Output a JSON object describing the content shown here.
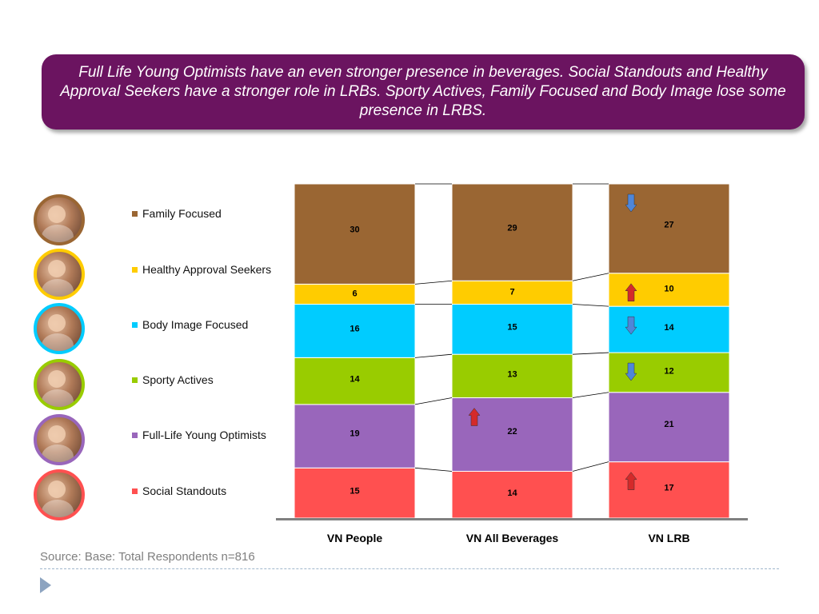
{
  "headline": "Full Life Young Optimists have an even stronger presence in beverages. Social Standouts and Healthy Approval Seekers have a stronger role in LRBs. Sporty Actives, Family Focused and Body Image lose some presence in LRBS.",
  "source": "Source: Base: Total Respondents n=816",
  "segments": [
    {
      "label": "Family Focused",
      "color": "#9a6633",
      "avatar_icon": "family-photo-icon"
    },
    {
      "label": "Healthy Approval Seekers",
      "color": "#ffcc00",
      "avatar_icon": "girl-eating-apple-photo-icon"
    },
    {
      "label": "Body Image Focused",
      "color": "#00ccff",
      "avatar_icon": "woman-exercising-photo-icon"
    },
    {
      "label": "Sporty Actives",
      "color": "#99cc00",
      "avatar_icon": "sports-group-photo-icon"
    },
    {
      "label": "Full-Life Young Optimists",
      "color": "#9966bb",
      "avatar_icon": "smiling-boy-photo-icon"
    },
    {
      "label": "Social Standouts",
      "color": "#ff5050",
      "avatar_icon": "friends-group-photo-icon"
    }
  ],
  "colors": {
    "banner": "#6b1460",
    "arrow_up": "#d42a2a",
    "arrow_down": "#4f86d9",
    "axis": "#808080"
  },
  "chart_data": {
    "type": "bar",
    "stacked": true,
    "percent_stacked": true,
    "categories": [
      "VN People",
      "VN All Beverages",
      "VN LRB"
    ],
    "series": [
      {
        "name": "Social Standouts",
        "values": [
          15,
          14,
          17
        ]
      },
      {
        "name": "Full-Life Young Optimists",
        "values": [
          19,
          22,
          21
        ]
      },
      {
        "name": "Sporty Actives",
        "values": [
          14,
          13,
          12
        ]
      },
      {
        "name": "Body Image Focused",
        "values": [
          16,
          15,
          14
        ]
      },
      {
        "name": "Healthy Approval Seekers",
        "values": [
          6,
          7,
          10
        ]
      },
      {
        "name": "Family Focused",
        "values": [
          30,
          29,
          27
        ]
      }
    ],
    "series_lines": true,
    "legend": "left",
    "grid": false,
    "annotations": [
      {
        "category": "VN All Beverages",
        "series": "Full-Life Young Optimists",
        "arrow": "up"
      },
      {
        "category": "VN LRB",
        "series": "Family Focused",
        "arrow": "down"
      },
      {
        "category": "VN LRB",
        "series": "Healthy Approval Seekers",
        "arrow": "up"
      },
      {
        "category": "VN LRB",
        "series": "Body Image Focused",
        "arrow": "down"
      },
      {
        "category": "VN LRB",
        "series": "Sporty Actives",
        "arrow": "down"
      },
      {
        "category": "VN LRB",
        "series": "Social Standouts",
        "arrow": "up"
      }
    ]
  }
}
